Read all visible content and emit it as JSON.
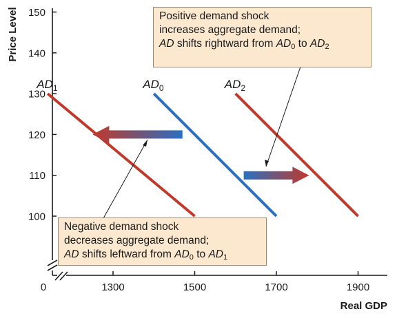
{
  "chart_data": {
    "type": "line",
    "xlabel": "Real GDP",
    "ylabel": "Price Level",
    "xlim": [
      1100,
      2000
    ],
    "ylim": [
      85,
      152
    ],
    "x_ticks": [
      1300,
      1500,
      1700,
      1900
    ],
    "y_ticks": [
      100,
      110,
      120,
      130,
      140,
      150
    ],
    "origin_label": "0",
    "axis_break": true,
    "grid": false,
    "colors": {
      "ad1": "#c0392b",
      "ad0": "#2a6fc0",
      "ad2": "#c0392b"
    },
    "series": [
      {
        "key": "ad1",
        "label_main": "AD",
        "label_sub": "1",
        "x": [
          1140,
          1500
        ],
        "y": [
          130,
          100
        ]
      },
      {
        "key": "ad0",
        "label_main": "AD",
        "label_sub": "0",
        "x": [
          1400,
          1700
        ],
        "y": [
          130,
          100
        ]
      },
      {
        "key": "ad2",
        "label_main": "AD",
        "label_sub": "2",
        "x": [
          1600,
          1900
        ],
        "y": [
          130,
          100
        ]
      }
    ],
    "annotations": {
      "positive": {
        "line1": "Positive demand shock",
        "line2": "increases aggregate demand;",
        "l3_ad": "AD",
        "l3_text": " shifts rightward from ",
        "l3_from": "AD",
        "l3_from_sub": "0",
        "l3_to_word": " to ",
        "l3_to": "AD",
        "l3_to_sub": "2"
      },
      "negative": {
        "line1": "Negative demand shock",
        "line2": "decreases aggregate demand;",
        "l3_ad": "AD",
        "l3_text": " shifts leftward from ",
        "l3_from": "AD",
        "l3_from_sub": "0",
        "l3_to_word": " to ",
        "l3_to": "AD",
        "l3_to_sub": "1"
      }
    },
    "shift_arrows": [
      {
        "direction": "left",
        "from_x": 1470,
        "to_x": 1250,
        "y": 120
      },
      {
        "direction": "right",
        "from_x": 1620,
        "to_x": 1780,
        "y": 110
      }
    ]
  }
}
